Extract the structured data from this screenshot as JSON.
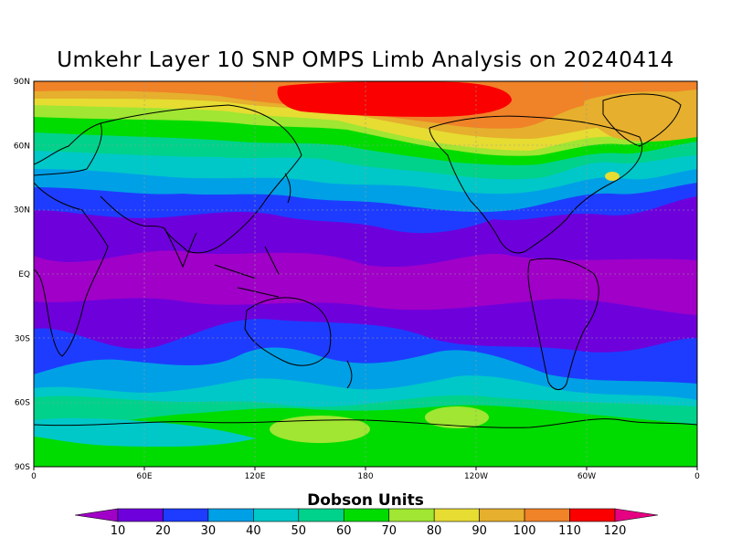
{
  "title": "Umkehr Layer 10 SNP OMPS Limb Analysis on 20240414",
  "colorbar_title": "Dobson Units",
  "chart_data": {
    "type": "heatmap",
    "title": "Umkehr Layer 10 SNP OMPS Limb Analysis on 20240414",
    "units": "Dobson Units",
    "projection": "cylindrical equidistant",
    "lon_range": [
      0,
      360
    ],
    "lat_range": [
      -90,
      90
    ],
    "grid": true,
    "x_ticks": [
      "0",
      "60E",
      "120E",
      "180",
      "120W",
      "60W",
      "0"
    ],
    "y_ticks": [
      "90N",
      "60N",
      "30N",
      "EQ",
      "30S",
      "60S",
      "90S"
    ],
    "levels": [
      10,
      20,
      30,
      40,
      50,
      60,
      70,
      80,
      90,
      100,
      110,
      120
    ],
    "colors": [
      "#a000c8",
      "#6e00dc",
      "#1e3cff",
      "#00a0e6",
      "#00c8c8",
      "#00d28c",
      "#00dc00",
      "#a0e632",
      "#e6dc32",
      "#e6af2d",
      "#f08228",
      "#fa0000",
      "#e60082"
    ]
  }
}
